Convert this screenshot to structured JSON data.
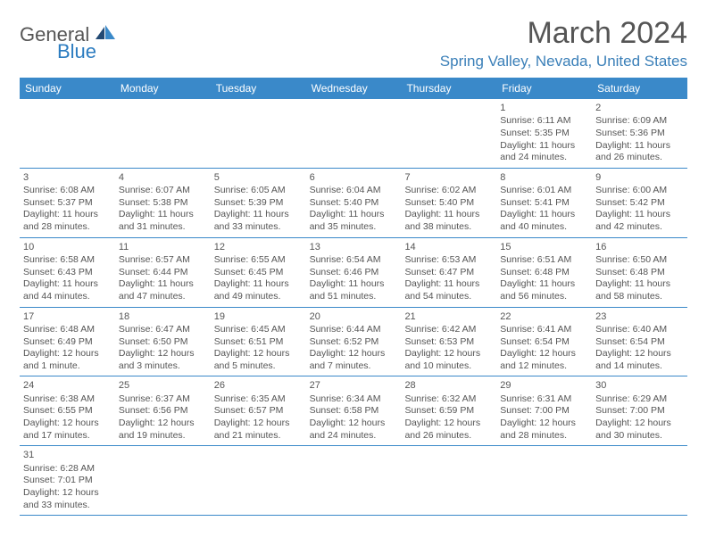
{
  "logo": {
    "general": "General",
    "blue": "Blue"
  },
  "header": {
    "month": "March 2024",
    "location": "Spring Valley, Nevada, United States"
  },
  "colors": {
    "header_bg": "#3a89c9",
    "header_text": "#ffffff",
    "accent": "#3a7fb8",
    "body_text": "#555555",
    "row_border": "#3a89c9",
    "background": "#ffffff"
  },
  "weekdays": [
    "Sunday",
    "Monday",
    "Tuesday",
    "Wednesday",
    "Thursday",
    "Friday",
    "Saturday"
  ],
  "weeks": [
    [
      null,
      null,
      null,
      null,
      null,
      {
        "n": "1",
        "sr": "Sunrise: 6:11 AM",
        "ss": "Sunset: 5:35 PM",
        "d1": "Daylight: 11 hours",
        "d2": "and 24 minutes."
      },
      {
        "n": "2",
        "sr": "Sunrise: 6:09 AM",
        "ss": "Sunset: 5:36 PM",
        "d1": "Daylight: 11 hours",
        "d2": "and 26 minutes."
      }
    ],
    [
      {
        "n": "3",
        "sr": "Sunrise: 6:08 AM",
        "ss": "Sunset: 5:37 PM",
        "d1": "Daylight: 11 hours",
        "d2": "and 28 minutes."
      },
      {
        "n": "4",
        "sr": "Sunrise: 6:07 AM",
        "ss": "Sunset: 5:38 PM",
        "d1": "Daylight: 11 hours",
        "d2": "and 31 minutes."
      },
      {
        "n": "5",
        "sr": "Sunrise: 6:05 AM",
        "ss": "Sunset: 5:39 PM",
        "d1": "Daylight: 11 hours",
        "d2": "and 33 minutes."
      },
      {
        "n": "6",
        "sr": "Sunrise: 6:04 AM",
        "ss": "Sunset: 5:40 PM",
        "d1": "Daylight: 11 hours",
        "d2": "and 35 minutes."
      },
      {
        "n": "7",
        "sr": "Sunrise: 6:02 AM",
        "ss": "Sunset: 5:40 PM",
        "d1": "Daylight: 11 hours",
        "d2": "and 38 minutes."
      },
      {
        "n": "8",
        "sr": "Sunrise: 6:01 AM",
        "ss": "Sunset: 5:41 PM",
        "d1": "Daylight: 11 hours",
        "d2": "and 40 minutes."
      },
      {
        "n": "9",
        "sr": "Sunrise: 6:00 AM",
        "ss": "Sunset: 5:42 PM",
        "d1": "Daylight: 11 hours",
        "d2": "and 42 minutes."
      }
    ],
    [
      {
        "n": "10",
        "sr": "Sunrise: 6:58 AM",
        "ss": "Sunset: 6:43 PM",
        "d1": "Daylight: 11 hours",
        "d2": "and 44 minutes."
      },
      {
        "n": "11",
        "sr": "Sunrise: 6:57 AM",
        "ss": "Sunset: 6:44 PM",
        "d1": "Daylight: 11 hours",
        "d2": "and 47 minutes."
      },
      {
        "n": "12",
        "sr": "Sunrise: 6:55 AM",
        "ss": "Sunset: 6:45 PM",
        "d1": "Daylight: 11 hours",
        "d2": "and 49 minutes."
      },
      {
        "n": "13",
        "sr": "Sunrise: 6:54 AM",
        "ss": "Sunset: 6:46 PM",
        "d1": "Daylight: 11 hours",
        "d2": "and 51 minutes."
      },
      {
        "n": "14",
        "sr": "Sunrise: 6:53 AM",
        "ss": "Sunset: 6:47 PM",
        "d1": "Daylight: 11 hours",
        "d2": "and 54 minutes."
      },
      {
        "n": "15",
        "sr": "Sunrise: 6:51 AM",
        "ss": "Sunset: 6:48 PM",
        "d1": "Daylight: 11 hours",
        "d2": "and 56 minutes."
      },
      {
        "n": "16",
        "sr": "Sunrise: 6:50 AM",
        "ss": "Sunset: 6:48 PM",
        "d1": "Daylight: 11 hours",
        "d2": "and 58 minutes."
      }
    ],
    [
      {
        "n": "17",
        "sr": "Sunrise: 6:48 AM",
        "ss": "Sunset: 6:49 PM",
        "d1": "Daylight: 12 hours",
        "d2": "and 1 minute."
      },
      {
        "n": "18",
        "sr": "Sunrise: 6:47 AM",
        "ss": "Sunset: 6:50 PM",
        "d1": "Daylight: 12 hours",
        "d2": "and 3 minutes."
      },
      {
        "n": "19",
        "sr": "Sunrise: 6:45 AM",
        "ss": "Sunset: 6:51 PM",
        "d1": "Daylight: 12 hours",
        "d2": "and 5 minutes."
      },
      {
        "n": "20",
        "sr": "Sunrise: 6:44 AM",
        "ss": "Sunset: 6:52 PM",
        "d1": "Daylight: 12 hours",
        "d2": "and 7 minutes."
      },
      {
        "n": "21",
        "sr": "Sunrise: 6:42 AM",
        "ss": "Sunset: 6:53 PM",
        "d1": "Daylight: 12 hours",
        "d2": "and 10 minutes."
      },
      {
        "n": "22",
        "sr": "Sunrise: 6:41 AM",
        "ss": "Sunset: 6:54 PM",
        "d1": "Daylight: 12 hours",
        "d2": "and 12 minutes."
      },
      {
        "n": "23",
        "sr": "Sunrise: 6:40 AM",
        "ss": "Sunset: 6:54 PM",
        "d1": "Daylight: 12 hours",
        "d2": "and 14 minutes."
      }
    ],
    [
      {
        "n": "24",
        "sr": "Sunrise: 6:38 AM",
        "ss": "Sunset: 6:55 PM",
        "d1": "Daylight: 12 hours",
        "d2": "and 17 minutes."
      },
      {
        "n": "25",
        "sr": "Sunrise: 6:37 AM",
        "ss": "Sunset: 6:56 PM",
        "d1": "Daylight: 12 hours",
        "d2": "and 19 minutes."
      },
      {
        "n": "26",
        "sr": "Sunrise: 6:35 AM",
        "ss": "Sunset: 6:57 PM",
        "d1": "Daylight: 12 hours",
        "d2": "and 21 minutes."
      },
      {
        "n": "27",
        "sr": "Sunrise: 6:34 AM",
        "ss": "Sunset: 6:58 PM",
        "d1": "Daylight: 12 hours",
        "d2": "and 24 minutes."
      },
      {
        "n": "28",
        "sr": "Sunrise: 6:32 AM",
        "ss": "Sunset: 6:59 PM",
        "d1": "Daylight: 12 hours",
        "d2": "and 26 minutes."
      },
      {
        "n": "29",
        "sr": "Sunrise: 6:31 AM",
        "ss": "Sunset: 7:00 PM",
        "d1": "Daylight: 12 hours",
        "d2": "and 28 minutes."
      },
      {
        "n": "30",
        "sr": "Sunrise: 6:29 AM",
        "ss": "Sunset: 7:00 PM",
        "d1": "Daylight: 12 hours",
        "d2": "and 30 minutes."
      }
    ],
    [
      {
        "n": "31",
        "sr": "Sunrise: 6:28 AM",
        "ss": "Sunset: 7:01 PM",
        "d1": "Daylight: 12 hours",
        "d2": "and 33 minutes."
      },
      null,
      null,
      null,
      null,
      null,
      null
    ]
  ]
}
